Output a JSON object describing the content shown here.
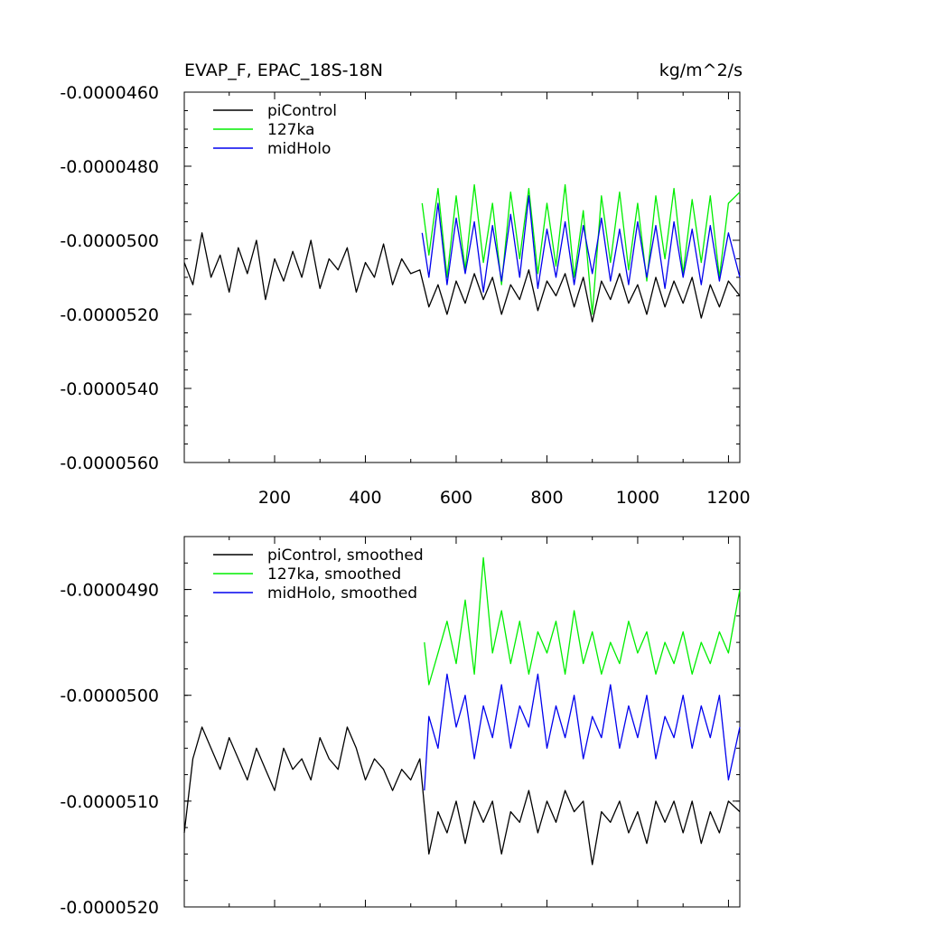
{
  "chart_data": [
    {
      "type": "line",
      "title_left": "EVAP_F, EPAC_18S-18N",
      "title_right": "kg/m^2/s",
      "xlim": [
        1,
        1225
      ],
      "ylim": [
        -5.6e-05,
        -4.6e-05
      ],
      "xticks": [
        200,
        400,
        600,
        800,
        1000,
        1200
      ],
      "xtick_labels": [
        "200",
        "400",
        "600",
        "800",
        "1000",
        "1200"
      ],
      "yticks": [
        -4.6e-05,
        -4.8e-05,
        -5e-05,
        -5.2e-05,
        -5.4e-05,
        -5.6e-05
      ],
      "ytick_labels": [
        "-0.0000460",
        "-0.0000480",
        "-0.0000500",
        "-0.0000520",
        "-0.0000540",
        "-0.0000560"
      ],
      "grid": false,
      "legend_position": "top-left",
      "series": [
        {
          "name": "piControl",
          "color": "#000000",
          "x": [
            1,
            20,
            40,
            60,
            80,
            100,
            120,
            140,
            160,
            180,
            200,
            220,
            240,
            260,
            280,
            300,
            320,
            340,
            360,
            380,
            400,
            420,
            440,
            460,
            480,
            500,
            520,
            540,
            560,
            580,
            600,
            620,
            640,
            660,
            680,
            700,
            720,
            740,
            760,
            780,
            800,
            820,
            840,
            860,
            880,
            900,
            920,
            940,
            960,
            980,
            1000,
            1020,
            1040,
            1060,
            1080,
            1100,
            1120,
            1140,
            1160,
            1180,
            1200,
            1225
          ],
          "values": [
            -5.06e-05,
            -5.12e-05,
            -4.98e-05,
            -5.1e-05,
            -5.04e-05,
            -5.14e-05,
            -5.02e-05,
            -5.09e-05,
            -5e-05,
            -5.16e-05,
            -5.05e-05,
            -5.11e-05,
            -5.03e-05,
            -5.1e-05,
            -5e-05,
            -5.13e-05,
            -5.05e-05,
            -5.08e-05,
            -5.02e-05,
            -5.14e-05,
            -5.06e-05,
            -5.1e-05,
            -5.01e-05,
            -5.12e-05,
            -5.05e-05,
            -5.09e-05,
            -5.08e-05,
            -5.18e-05,
            -5.12e-05,
            -5.2e-05,
            -5.11e-05,
            -5.17e-05,
            -5.09e-05,
            -5.16e-05,
            -5.1e-05,
            -5.2e-05,
            -5.12e-05,
            -5.16e-05,
            -5.08e-05,
            -5.19e-05,
            -5.11e-05,
            -5.15e-05,
            -5.09e-05,
            -5.18e-05,
            -5.1e-05,
            -5.22e-05,
            -5.11e-05,
            -5.16e-05,
            -5.09e-05,
            -5.17e-05,
            -5.12e-05,
            -5.2e-05,
            -5.1e-05,
            -5.18e-05,
            -5.11e-05,
            -5.17e-05,
            -5.1e-05,
            -5.21e-05,
            -5.12e-05,
            -5.18e-05,
            -5.11e-05,
            -5.15e-05
          ]
        },
        {
          "name": "127ka",
          "color": "#00ee00",
          "x": [
            525,
            540,
            560,
            580,
            600,
            620,
            640,
            660,
            680,
            700,
            720,
            740,
            760,
            780,
            800,
            820,
            840,
            860,
            880,
            900,
            920,
            940,
            960,
            980,
            1000,
            1020,
            1040,
            1060,
            1080,
            1100,
            1120,
            1140,
            1160,
            1180,
            1200,
            1225
          ],
          "values": [
            -4.9e-05,
            -5.04e-05,
            -4.86e-05,
            -5.1e-05,
            -4.88e-05,
            -5.08e-05,
            -4.85e-05,
            -5.06e-05,
            -4.9e-05,
            -5.12e-05,
            -4.87e-05,
            -5.05e-05,
            -4.86e-05,
            -5.09e-05,
            -4.9e-05,
            -5.07e-05,
            -4.85e-05,
            -5.1e-05,
            -4.92e-05,
            -5.2e-05,
            -4.88e-05,
            -5.06e-05,
            -4.87e-05,
            -5.08e-05,
            -4.9e-05,
            -5.11e-05,
            -4.88e-05,
            -5.05e-05,
            -4.86e-05,
            -5.09e-05,
            -4.89e-05,
            -5.06e-05,
            -4.88e-05,
            -5.1e-05,
            -4.9e-05,
            -4.87e-05
          ]
        },
        {
          "name": "midHolo",
          "color": "#0000ee",
          "x": [
            525,
            540,
            560,
            580,
            600,
            620,
            640,
            660,
            680,
            700,
            720,
            740,
            760,
            780,
            800,
            820,
            840,
            860,
            880,
            900,
            920,
            940,
            960,
            980,
            1000,
            1020,
            1040,
            1060,
            1080,
            1100,
            1120,
            1140,
            1160,
            1180,
            1200,
            1225
          ],
          "values": [
            -4.98e-05,
            -5.1e-05,
            -4.9e-05,
            -5.12e-05,
            -4.94e-05,
            -5.09e-05,
            -4.95e-05,
            -5.14e-05,
            -4.96e-05,
            -5.11e-05,
            -4.93e-05,
            -5.1e-05,
            -4.88e-05,
            -5.13e-05,
            -4.97e-05,
            -5.1e-05,
            -4.95e-05,
            -5.12e-05,
            -4.96e-05,
            -5.09e-05,
            -4.94e-05,
            -5.11e-05,
            -4.97e-05,
            -5.12e-05,
            -4.95e-05,
            -5.1e-05,
            -4.96e-05,
            -5.13e-05,
            -4.95e-05,
            -5.1e-05,
            -4.97e-05,
            -5.12e-05,
            -4.96e-05,
            -5.11e-05,
            -4.98e-05,
            -5.1e-05
          ]
        }
      ]
    },
    {
      "type": "line",
      "xlim": [
        1,
        1225
      ],
      "ylim": [
        -5.2e-05,
        -4.85e-05
      ],
      "yticks": [
        -4.9e-05,
        -5e-05,
        -5.1e-05,
        -5.2e-05
      ],
      "ytick_labels": [
        "-0.0000490",
        "-0.0000500",
        "-0.0000510",
        "-0.0000520"
      ],
      "xticks": [
        200,
        400,
        600,
        800,
        1000,
        1200
      ],
      "grid": false,
      "legend_position": "top-left",
      "series": [
        {
          "name": "piControl, smoothed",
          "color": "#000000",
          "x": [
            1,
            20,
            40,
            60,
            80,
            100,
            120,
            140,
            160,
            180,
            200,
            220,
            240,
            260,
            280,
            300,
            320,
            340,
            360,
            380,
            400,
            420,
            440,
            460,
            480,
            500,
            520,
            540,
            560,
            580,
            600,
            620,
            640,
            660,
            680,
            700,
            720,
            740,
            760,
            780,
            800,
            820,
            840,
            860,
            880,
            900,
            920,
            940,
            960,
            980,
            1000,
            1020,
            1040,
            1060,
            1080,
            1100,
            1120,
            1140,
            1160,
            1180,
            1200,
            1225
          ],
          "values": [
            -5.13e-05,
            -5.06e-05,
            -5.03e-05,
            -5.05e-05,
            -5.07e-05,
            -5.04e-05,
            -5.06e-05,
            -5.08e-05,
            -5.05e-05,
            -5.07e-05,
            -5.09e-05,
            -5.05e-05,
            -5.07e-05,
            -5.06e-05,
            -5.08e-05,
            -5.04e-05,
            -5.06e-05,
            -5.07e-05,
            -5.03e-05,
            -5.05e-05,
            -5.08e-05,
            -5.06e-05,
            -5.07e-05,
            -5.09e-05,
            -5.07e-05,
            -5.08e-05,
            -5.06e-05,
            -5.15e-05,
            -5.11e-05,
            -5.13e-05,
            -5.1e-05,
            -5.14e-05,
            -5.1e-05,
            -5.12e-05,
            -5.1e-05,
            -5.15e-05,
            -5.11e-05,
            -5.12e-05,
            -5.09e-05,
            -5.13e-05,
            -5.1e-05,
            -5.12e-05,
            -5.09e-05,
            -5.11e-05,
            -5.1e-05,
            -5.16e-05,
            -5.11e-05,
            -5.12e-05,
            -5.1e-05,
            -5.13e-05,
            -5.11e-05,
            -5.14e-05,
            -5.1e-05,
            -5.12e-05,
            -5.1e-05,
            -5.13e-05,
            -5.1e-05,
            -5.14e-05,
            -5.11e-05,
            -5.13e-05,
            -5.1e-05,
            -5.11e-05
          ]
        },
        {
          "name": "127ka, smoothed",
          "color": "#00ee00",
          "x": [
            530,
            540,
            560,
            580,
            600,
            620,
            640,
            660,
            680,
            700,
            720,
            740,
            760,
            780,
            800,
            820,
            840,
            860,
            880,
            900,
            920,
            940,
            960,
            980,
            1000,
            1020,
            1040,
            1060,
            1080,
            1100,
            1120,
            1140,
            1160,
            1180,
            1200,
            1225
          ],
          "values": [
            -4.95e-05,
            -4.99e-05,
            -4.96e-05,
            -4.93e-05,
            -4.97e-05,
            -4.91e-05,
            -4.98e-05,
            -4.87e-05,
            -4.96e-05,
            -4.92e-05,
            -4.97e-05,
            -4.93e-05,
            -4.98e-05,
            -4.94e-05,
            -4.96e-05,
            -4.93e-05,
            -4.98e-05,
            -4.92e-05,
            -4.97e-05,
            -4.94e-05,
            -4.98e-05,
            -4.95e-05,
            -4.97e-05,
            -4.93e-05,
            -4.96e-05,
            -4.94e-05,
            -4.98e-05,
            -4.95e-05,
            -4.97e-05,
            -4.94e-05,
            -4.98e-05,
            -4.95e-05,
            -4.97e-05,
            -4.94e-05,
            -4.96e-05,
            -4.9e-05
          ]
        },
        {
          "name": "midHolo, smoothed",
          "color": "#0000ee",
          "x": [
            530,
            540,
            560,
            580,
            600,
            620,
            640,
            660,
            680,
            700,
            720,
            740,
            760,
            780,
            800,
            820,
            840,
            860,
            880,
            900,
            920,
            940,
            960,
            980,
            1000,
            1020,
            1040,
            1060,
            1080,
            1100,
            1120,
            1140,
            1160,
            1180,
            1200,
            1225
          ],
          "values": [
            -5.09e-05,
            -5.02e-05,
            -5.05e-05,
            -4.98e-05,
            -5.03e-05,
            -5e-05,
            -5.06e-05,
            -5.01e-05,
            -5.04e-05,
            -4.99e-05,
            -5.05e-05,
            -5.01e-05,
            -5.03e-05,
            -4.98e-05,
            -5.05e-05,
            -5.01e-05,
            -5.04e-05,
            -5e-05,
            -5.06e-05,
            -5.02e-05,
            -5.04e-05,
            -4.99e-05,
            -5.05e-05,
            -5.01e-05,
            -5.04e-05,
            -5e-05,
            -5.06e-05,
            -5.02e-05,
            -5.04e-05,
            -5e-05,
            -5.05e-05,
            -5.01e-05,
            -5.04e-05,
            -5e-05,
            -5.08e-05,
            -5.03e-05
          ]
        }
      ]
    }
  ]
}
